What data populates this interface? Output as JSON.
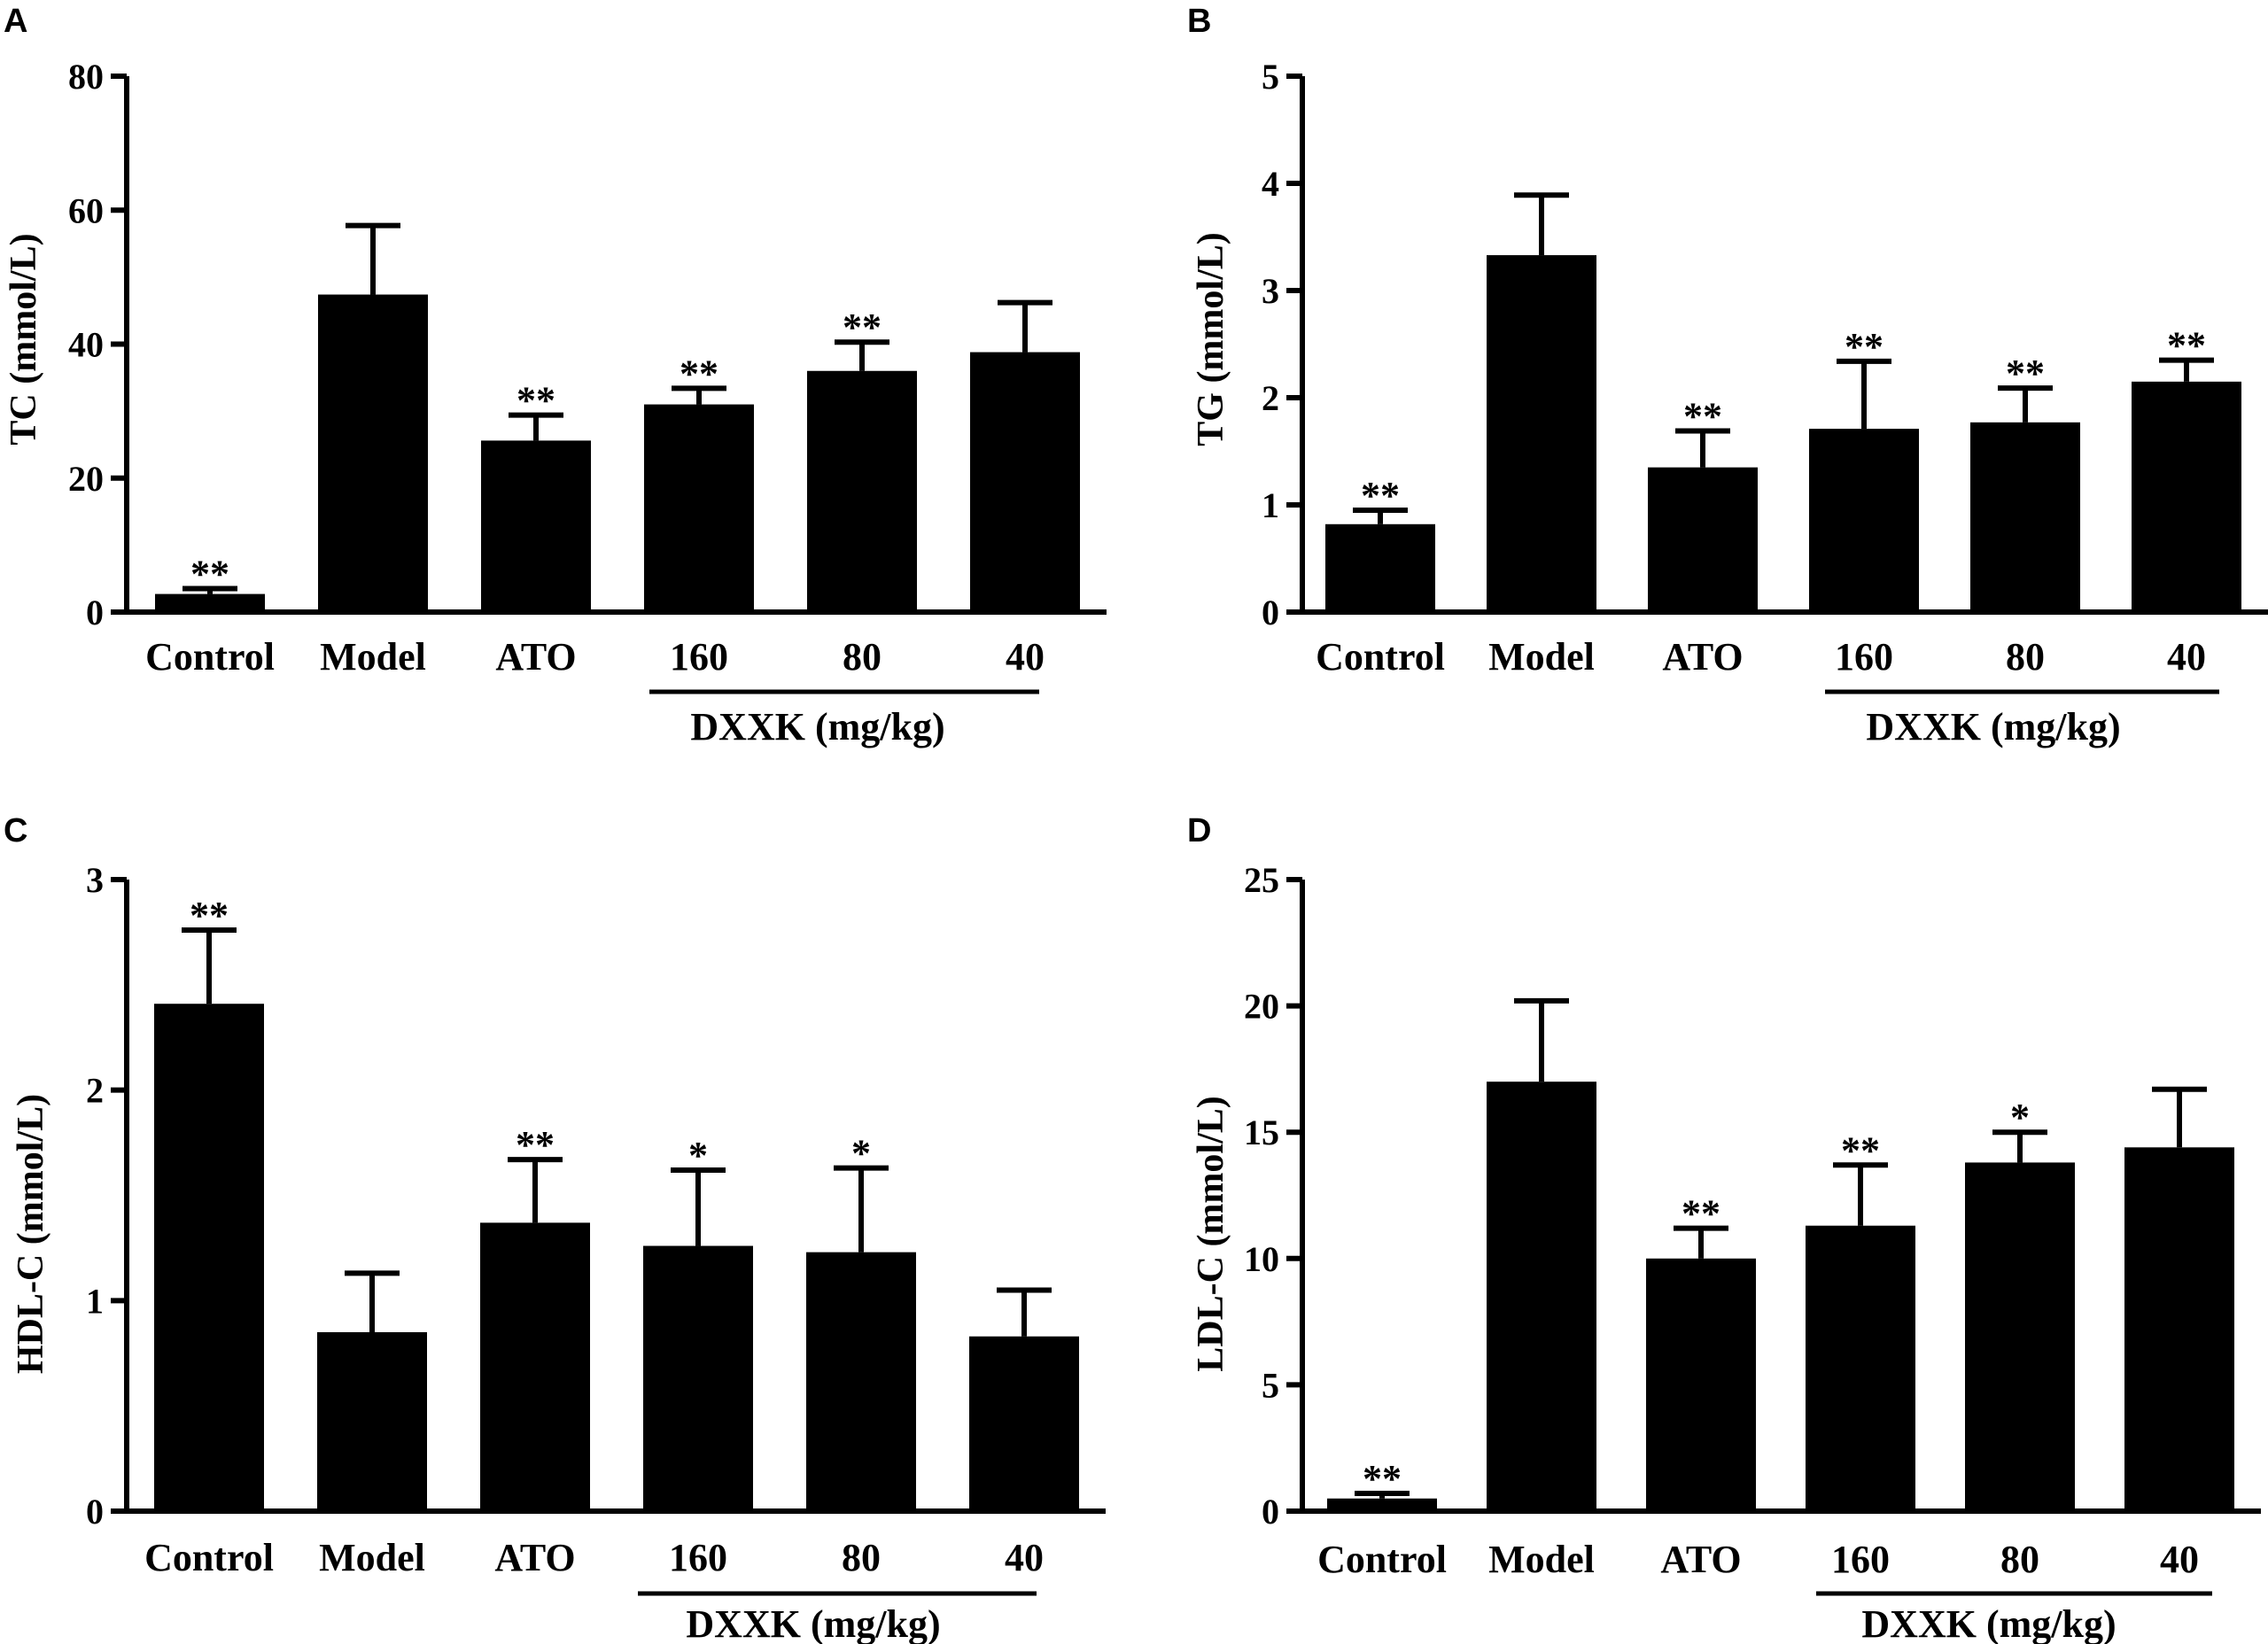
{
  "chart_data": [
    {
      "panel": "A",
      "type": "bar",
      "ylabel": "TC (mmol/L)",
      "ylim": [
        0,
        80
      ],
      "yticks": [
        0,
        20,
        40,
        60,
        80
      ],
      "categories": [
        "Control",
        "Model",
        "ATO",
        "160",
        "80",
        "40"
      ],
      "values": [
        2.7,
        47.4,
        25.6,
        31.0,
        36.0,
        38.8
      ],
      "errors": [
        0.8,
        10.3,
        3.8,
        2.4,
        4.3,
        7.4
      ],
      "significance": [
        "**",
        "",
        "**",
        "**",
        "**",
        ""
      ],
      "group_label": "DXXK (mg/kg)",
      "group_categories": [
        "160",
        "80",
        "40"
      ]
    },
    {
      "panel": "B",
      "type": "bar",
      "ylabel": "TG (mmol/L)",
      "ylim": [
        0,
        5
      ],
      "yticks": [
        0,
        1,
        2,
        3,
        4,
        5
      ],
      "categories": [
        "Control",
        "Model",
        "ATO",
        "160",
        "80",
        "40"
      ],
      "values": [
        0.82,
        3.33,
        1.35,
        1.71,
        1.77,
        2.15
      ],
      "errors": [
        0.13,
        0.56,
        0.34,
        0.63,
        0.32,
        0.2
      ],
      "significance": [
        "**",
        "",
        "**",
        "**",
        "**",
        "**"
      ],
      "group_label": "DXXK (mg/kg)",
      "group_categories": [
        "160",
        "80",
        "40"
      ]
    },
    {
      "panel": "C",
      "type": "bar",
      "ylabel": "HDL-C  (mmol/L)",
      "ylim": [
        0,
        3
      ],
      "yticks": [
        0,
        1,
        2,
        3
      ],
      "categories": [
        "Control",
        "Model",
        "ATO",
        "160",
        "80",
        "40"
      ],
      "values": [
        2.41,
        0.85,
        1.37,
        1.26,
        1.23,
        0.83
      ],
      "errors": [
        0.35,
        0.28,
        0.3,
        0.36,
        0.4,
        0.22
      ],
      "significance": [
        "**",
        "",
        "**",
        "*",
        "*",
        ""
      ],
      "group_label": "DXXK (mg/kg)",
      "group_categories": [
        "160",
        "80",
        "40"
      ]
    },
    {
      "panel": "D",
      "type": "bar",
      "ylabel": "LDL-C  (mmol/L)",
      "ylim": [
        0,
        25
      ],
      "yticks": [
        0,
        5,
        10,
        15,
        20,
        25
      ],
      "categories": [
        "Control",
        "Model",
        "ATO",
        "160",
        "80",
        "40"
      ],
      "values": [
        0.5,
        17.0,
        10.0,
        11.3,
        13.8,
        14.4
      ],
      "errors": [
        0.2,
        3.2,
        1.2,
        2.4,
        1.2,
        2.3
      ],
      "significance": [
        "**",
        "",
        "**",
        "**",
        "*",
        ""
      ],
      "group_label": "DXXK (mg/kg)",
      "group_categories": [
        "160",
        "80",
        "40"
      ]
    }
  ]
}
